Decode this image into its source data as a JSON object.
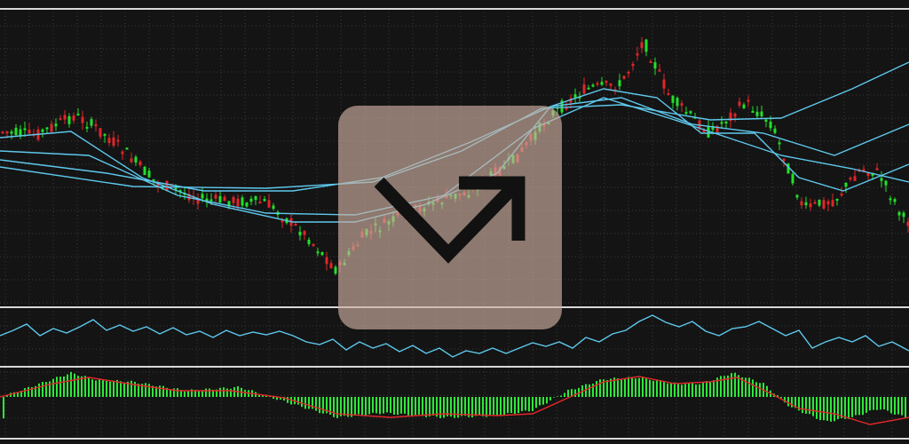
{
  "colors": {
    "background": "#141414",
    "grid": "#3a3a3a",
    "separator": "#d8d8d8",
    "bull": "#22e02a",
    "bear": "#e0262a",
    "ma_line": "#5ec8ec",
    "oscillator_line": "#5ec8ec",
    "histogram": "#2ee83a",
    "signal_line": "#e0262a",
    "logo_tile": "#cdafa0",
    "logo_glyph": "#111111"
  },
  "logo": {
    "icon": "trend-up-arrow-icon"
  },
  "chart_data": [
    {
      "type": "candlestick",
      "panel": "price",
      "grid": true,
      "axes_labels": "none",
      "trend_path": [
        [
          0,
          148
        ],
        [
          40,
          152
        ],
        [
          85,
          130
        ],
        [
          110,
          145
        ],
        [
          140,
          170
        ],
        [
          175,
          205
        ],
        [
          230,
          225
        ],
        [
          300,
          228
        ],
        [
          345,
          265
        ],
        [
          380,
          305
        ],
        [
          410,
          265
        ],
        [
          470,
          235
        ],
        [
          530,
          215
        ],
        [
          580,
          180
        ],
        [
          620,
          130
        ],
        [
          660,
          100
        ],
        [
          700,
          95
        ],
        [
          725,
          45
        ],
        [
          755,
          110
        ],
        [
          800,
          150
        ],
        [
          840,
          115
        ],
        [
          870,
          140
        ],
        [
          905,
          235
        ],
        [
          940,
          225
        ],
        [
          970,
          190
        ],
        [
          990,
          195
        ],
        [
          1020,
          250
        ]
      ],
      "moving_averages": [
        {
          "color": "#5ec8ec",
          "points": [
            [
              0,
              155
            ],
            [
              80,
              148
            ],
            [
              160,
              200
            ],
            [
              240,
              230
            ],
            [
              330,
              250
            ],
            [
              400,
              250
            ],
            [
              480,
              230
            ],
            [
              560,
              195
            ],
            [
              620,
              120
            ],
            [
              680,
              100
            ],
            [
              740,
              110
            ],
            [
              790,
              150
            ],
            [
              850,
              150
            ],
            [
              900,
              200
            ],
            [
              950,
              215
            ],
            [
              1024,
              185
            ]
          ]
        },
        {
          "color": "#5ec8ec",
          "points": [
            [
              0,
              170
            ],
            [
              100,
              175
            ],
            [
              200,
              220
            ],
            [
              300,
              240
            ],
            [
              400,
              242
            ],
            [
              500,
              220
            ],
            [
              600,
              145
            ],
            [
              680,
              110
            ],
            [
              760,
              135
            ],
            [
              820,
              155
            ],
            [
              880,
              175
            ],
            [
              960,
              190
            ],
            [
              1024,
              205
            ]
          ]
        },
        {
          "color": "#5ec8ec",
          "points": [
            [
              0,
              180
            ],
            [
              120,
              195
            ],
            [
              230,
              215
            ],
            [
              330,
              215
            ],
            [
              430,
              200
            ],
            [
              530,
              160
            ],
            [
              620,
              120
            ],
            [
              700,
              110
            ],
            [
              780,
              140
            ],
            [
              860,
              150
            ],
            [
              940,
              175
            ],
            [
              1024,
              140
            ]
          ]
        },
        {
          "color": "#5ec8ec",
          "points": [
            [
              0,
              188
            ],
            [
              150,
              210
            ],
            [
              300,
              212
            ],
            [
              420,
              205
            ],
            [
              520,
              170
            ],
            [
              610,
              122
            ],
            [
              700,
              118
            ],
            [
              800,
              135
            ],
            [
              880,
              133
            ],
            [
              960,
              100
            ],
            [
              1024,
              70
            ]
          ]
        }
      ]
    },
    {
      "type": "line",
      "panel": "oscillator",
      "grid": true,
      "axes_labels": "none",
      "points": [
        [
          0,
          378
        ],
        [
          15,
          372
        ],
        [
          30,
          365
        ],
        [
          45,
          378
        ],
        [
          60,
          370
        ],
        [
          75,
          375
        ],
        [
          90,
          368
        ],
        [
          105,
          360
        ],
        [
          120,
          372
        ],
        [
          135,
          366
        ],
        [
          150,
          373
        ],
        [
          165,
          368
        ],
        [
          180,
          376
        ],
        [
          195,
          369
        ],
        [
          210,
          377
        ],
        [
          225,
          373
        ],
        [
          240,
          380
        ],
        [
          255,
          372
        ],
        [
          270,
          378
        ],
        [
          285,
          374
        ],
        [
          300,
          377
        ],
        [
          315,
          373
        ],
        [
          330,
          378
        ],
        [
          345,
          385
        ],
        [
          360,
          388
        ],
        [
          375,
          382
        ],
        [
          390,
          394
        ],
        [
          405,
          385
        ],
        [
          420,
          392
        ],
        [
          435,
          387
        ],
        [
          450,
          396
        ],
        [
          465,
          389
        ],
        [
          480,
          398
        ],
        [
          495,
          392
        ],
        [
          510,
          402
        ],
        [
          525,
          395
        ],
        [
          540,
          398
        ],
        [
          555,
          392
        ],
        [
          570,
          398
        ],
        [
          585,
          392
        ],
        [
          600,
          386
        ],
        [
          615,
          390
        ],
        [
          630,
          385
        ],
        [
          645,
          392
        ],
        [
          660,
          380
        ],
        [
          675,
          385
        ],
        [
          690,
          376
        ],
        [
          705,
          372
        ],
        [
          720,
          362
        ],
        [
          735,
          355
        ],
        [
          750,
          363
        ],
        [
          765,
          368
        ],
        [
          780,
          362
        ],
        [
          795,
          373
        ],
        [
          810,
          378
        ],
        [
          825,
          370
        ],
        [
          840,
          368
        ],
        [
          855,
          362
        ],
        [
          870,
          370
        ],
        [
          885,
          378
        ],
        [
          900,
          372
        ],
        [
          915,
          392
        ],
        [
          930,
          385
        ],
        [
          945,
          380
        ],
        [
          960,
          385
        ],
        [
          975,
          378
        ],
        [
          990,
          390
        ],
        [
          1005,
          385
        ],
        [
          1024,
          395
        ]
      ]
    },
    {
      "type": "bar",
      "panel": "histogram",
      "grid": true,
      "axes_labels": "none",
      "bar_color": "#2ee83a",
      "baseline_y": 447,
      "bars": [
        [
          5,
          446
        ],
        [
          80,
          420
        ],
        [
          110,
          428
        ],
        [
          150,
          430
        ],
        [
          210,
          440
        ],
        [
          270,
          436
        ],
        [
          320,
          452
        ],
        [
          380,
          470
        ],
        [
          430,
          465
        ],
        [
          500,
          470
        ],
        [
          560,
          468
        ],
        [
          600,
          462
        ],
        [
          640,
          440
        ],
        [
          680,
          427
        ],
        [
          720,
          425
        ],
        [
          760,
          432
        ],
        [
          790,
          432
        ],
        [
          825,
          420
        ],
        [
          860,
          432
        ],
        [
          890,
          458
        ],
        [
          930,
          475
        ],
        [
          960,
          470
        ],
        [
          990,
          460
        ],
        [
          1020,
          470
        ]
      ],
      "signal_line": {
        "color": "#e0262a",
        "points": [
          [
            0,
            447
          ],
          [
            60,
            432
          ],
          [
            100,
            425
          ],
          [
            150,
            433
          ],
          [
            200,
            440
          ],
          [
            260,
            440
          ],
          [
            320,
            448
          ],
          [
            380,
            466
          ],
          [
            440,
            470
          ],
          [
            500,
            466
          ],
          [
            560,
            468
          ],
          [
            600,
            466
          ],
          [
            640,
            448
          ],
          [
            680,
            430
          ],
          [
            720,
            424
          ],
          [
            760,
            432
          ],
          [
            800,
            430
          ],
          [
            830,
            425
          ],
          [
            870,
            444
          ],
          [
            900,
            460
          ],
          [
            940,
            466
          ],
          [
            980,
            478
          ],
          [
            1024,
            470
          ]
        ]
      }
    }
  ]
}
